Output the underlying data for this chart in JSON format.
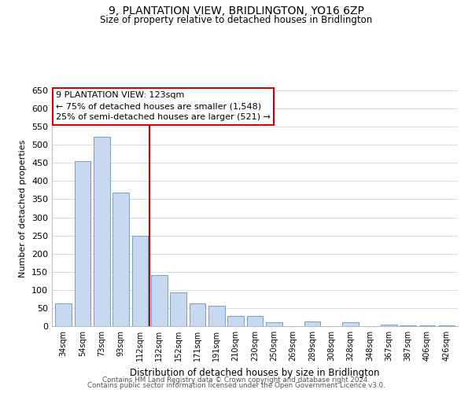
{
  "title": "9, PLANTATION VIEW, BRIDLINGTON, YO16 6ZP",
  "subtitle": "Size of property relative to detached houses in Bridlington",
  "xlabel": "Distribution of detached houses by size in Bridlington",
  "ylabel": "Number of detached properties",
  "bar_labels": [
    "34sqm",
    "54sqm",
    "73sqm",
    "93sqm",
    "112sqm",
    "132sqm",
    "152sqm",
    "171sqm",
    "191sqm",
    "210sqm",
    "230sqm",
    "250sqm",
    "269sqm",
    "289sqm",
    "308sqm",
    "328sqm",
    "348sqm",
    "367sqm",
    "387sqm",
    "406sqm",
    "426sqm"
  ],
  "bar_values": [
    62,
    455,
    522,
    369,
    250,
    141,
    93,
    62,
    57,
    28,
    28,
    10,
    0,
    13,
    0,
    10,
    0,
    5,
    3,
    2,
    2
  ],
  "bar_color": "#c6d9f0",
  "bar_edge_color": "#7a9cc4",
  "vline_x": 4.5,
  "vline_color": "#cc0000",
  "ylim": [
    0,
    650
  ],
  "yticks": [
    0,
    50,
    100,
    150,
    200,
    250,
    300,
    350,
    400,
    450,
    500,
    550,
    600,
    650
  ],
  "annotation_title": "9 PLANTATION VIEW: 123sqm",
  "annotation_line1": "← 75% of detached houses are smaller (1,548)",
  "annotation_line2": "25% of semi-detached houses are larger (521) →",
  "annotation_box_color": "#ffffff",
  "annotation_box_edge": "#cc0000",
  "footer_line1": "Contains HM Land Registry data © Crown copyright and database right 2024.",
  "footer_line2": "Contains public sector information licensed under the Open Government Licence v3.0.",
  "background_color": "#ffffff",
  "grid_color": "#d0dce8"
}
